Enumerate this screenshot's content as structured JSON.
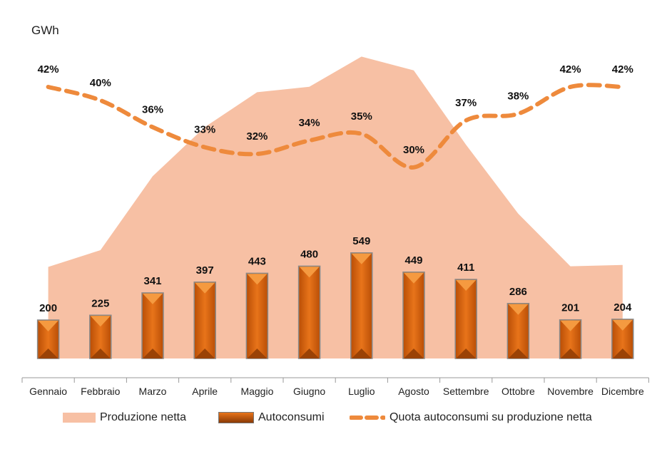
{
  "chart_data": {
    "type": "bar+area+line",
    "ylabel": "GWh",
    "categories": [
      "Gennaio",
      "Febbraio",
      "Marzo",
      "Aprile",
      "Maggio",
      "Giugno",
      "Luglio",
      "Agosto",
      "Settembre",
      "Ottobre",
      "Novembre",
      "Dicembre"
    ],
    "series": [
      {
        "name": "Produzione netta",
        "type": "area",
        "color": "#f7c0a4",
        "values": [
          476,
          563,
          947,
          1203,
          1384,
          1412,
          1569,
          1497,
          1111,
          753,
          479,
          486
        ]
      },
      {
        "name": "Autoconsumi",
        "type": "bar",
        "color": "#e26a12",
        "values": [
          200,
          225,
          341,
          397,
          443,
          480,
          549,
          449,
          411,
          286,
          201,
          204
        ]
      },
      {
        "name": "Quota autoconsumi su produzione netta",
        "type": "line",
        "color": "#ee8a3c",
        "values": [
          42,
          40,
          36,
          33,
          32,
          34,
          35,
          30,
          37,
          38,
          42,
          42
        ],
        "labels": [
          "42%",
          "40%",
          "36%",
          "33%",
          "32%",
          "34%",
          "35%",
          "30%",
          "37%",
          "38%",
          "42%",
          "42%"
        ]
      }
    ],
    "grid": false,
    "legend": "bottom"
  }
}
